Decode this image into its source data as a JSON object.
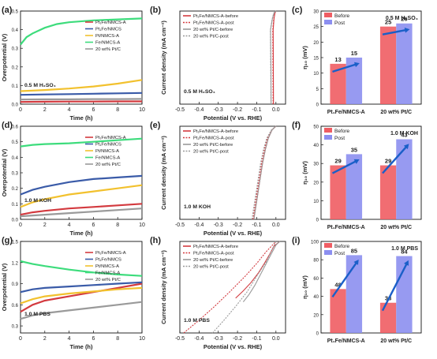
{
  "panel_labels": [
    "(a)",
    "(b)",
    "(c)",
    "(d)",
    "(e)",
    "(f)",
    "(g)",
    "(h)",
    "(i)"
  ],
  "colors": {
    "ptfe_nmcsa": "#d33a3f",
    "ptfe_nmcs": "#3a5ba8",
    "pt_nmcsa": "#f2c12e",
    "fe_nmcsa": "#3ddc7c",
    "ptc": "#9a9a9a",
    "before_bar": "#ef5d63",
    "post_bar": "#8c8ff0",
    "arrow": "#1a5fc8"
  },
  "chart_data": [
    {
      "id": "a",
      "type": "line",
      "xlabel": "Time (h)",
      "ylabel": "Overpotential (V)",
      "xlim": [
        0,
        10
      ],
      "ylim": [
        0,
        0.5
      ],
      "xticks": [
        "0",
        "2",
        "4",
        "6",
        "8",
        "10"
      ],
      "yticks": [
        "0.0",
        "0.1",
        "0.2",
        "0.3",
        "0.4",
        "0.5"
      ],
      "annotation": "0.5 M H₂SO₄",
      "legend": [
        "Pt₁Fe/NMCS-A",
        "Pt₁Fe/NMCS",
        "Pt/NMCS-A",
        "Fe/NMCS-A",
        "20 wt% Pt/C"
      ],
      "series": [
        {
          "name": "Pt₁Fe/NMCS-A",
          "color": "ptfe_nmcsa",
          "x": [
            0,
            2,
            4,
            6,
            8,
            10
          ],
          "y": [
            0.012,
            0.013,
            0.014,
            0.014,
            0.015,
            0.015
          ]
        },
        {
          "name": "Pt₁Fe/NMCS",
          "color": "ptfe_nmcs",
          "x": [
            0,
            2,
            4,
            6,
            8,
            10
          ],
          "y": [
            0.05,
            0.052,
            0.054,
            0.056,
            0.058,
            0.06
          ]
        },
        {
          "name": "Pt/NMCS-A",
          "color": "pt_nmcsa",
          "x": [
            0,
            2,
            4,
            6,
            8,
            10
          ],
          "y": [
            0.07,
            0.076,
            0.084,
            0.095,
            0.11,
            0.13
          ]
        },
        {
          "name": "Fe/NMCS-A",
          "color": "fe_nmcsa",
          "x": [
            0,
            0.5,
            1,
            2,
            3,
            4,
            6,
            8,
            10
          ],
          "y": [
            0.32,
            0.36,
            0.38,
            0.41,
            0.43,
            0.44,
            0.45,
            0.455,
            0.46
          ]
        },
        {
          "name": "20 wt% Pt/C",
          "color": "ptc",
          "x": [
            0,
            2,
            4,
            6,
            8,
            10
          ],
          "y": [
            0.025,
            0.026,
            0.026,
            0.027,
            0.027,
            0.028
          ]
        }
      ]
    },
    {
      "id": "b",
      "type": "line",
      "xlabel": "Potential (V vs. RHE)",
      "ylabel": "Current density (mA cm⁻²)",
      "xlim": [
        -0.5,
        0.05
      ],
      "ylim": [
        -10,
        0
      ],
      "xticks": [
        "-0.5",
        "-0.4",
        "-0.3",
        "-0.2",
        "-0.1",
        "0.0"
      ],
      "annotation": "0.5 M H₂SO₄",
      "legend": [
        "Pt₁Fe/NMCS-A-before",
        "Pt₁Fe/NMCS-A-post",
        "20 wt% Pt/C-before",
        "20 wt% Pt/C-post"
      ],
      "series": [
        {
          "name": "Pt₁Fe/NMCS-A-before",
          "color": "ptfe_nmcsa",
          "dash": false,
          "x": [
            -0.013,
            -0.0132,
            -0.0135,
            -0.014,
            -0.0145,
            -0.01,
            -0.005,
            0.0
          ],
          "y": [
            -10,
            -8,
            -6,
            -4,
            -2,
            -0.8,
            -0.2,
            0
          ]
        },
        {
          "name": "Pt₁Fe/NMCS-A-post",
          "color": "ptfe_nmcsa",
          "dash": true,
          "x": [
            -0.015,
            -0.0152,
            -0.0155,
            -0.016,
            -0.0165,
            -0.011,
            -0.006,
            0.0
          ],
          "y": [
            -10,
            -8,
            -6,
            -4,
            -2,
            -0.8,
            -0.2,
            0
          ]
        },
        {
          "name": "20 wt% Pt/C-before",
          "color": "ptc",
          "dash": false,
          "x": [
            -0.025,
            -0.0255,
            -0.026,
            -0.027,
            -0.028,
            -0.018,
            -0.01,
            0.0
          ],
          "y": [
            -10,
            -8,
            -6,
            -4,
            -2,
            -0.8,
            -0.2,
            0
          ]
        },
        {
          "name": "20 wt% Pt/C-post",
          "color": "ptc",
          "dash": true,
          "x": [
            -0.026,
            -0.0265,
            -0.027,
            -0.028,
            -0.029,
            -0.019,
            -0.011,
            0.0
          ],
          "y": [
            -10,
            -8,
            -6,
            -4,
            -2,
            -0.8,
            -0.2,
            0
          ]
        }
      ]
    },
    {
      "id": "c",
      "type": "bar",
      "ylabel": "η₁₀ (mV)",
      "ylim": [
        0,
        30
      ],
      "yticks": [
        "0",
        "5",
        "10",
        "15",
        "20",
        "25",
        "30"
      ],
      "annotation": "0.5 M H₂SO₄",
      "legend": [
        "Before",
        "Post"
      ],
      "categories": [
        "Pt₁Fe/NMCS-A",
        "20 wt% Pt/C"
      ],
      "series": [
        {
          "name": "Before",
          "color": "before_bar",
          "values": [
            13,
            25
          ]
        },
        {
          "name": "Post",
          "color": "post_bar",
          "values": [
            15,
            26
          ]
        }
      ]
    },
    {
      "id": "d",
      "type": "line",
      "xlabel": "Time (h)",
      "ylabel": "Overpotential (V)",
      "xlim": [
        0,
        10
      ],
      "ylim": [
        0,
        0.6
      ],
      "xticks": [
        "0",
        "2",
        "4",
        "6",
        "8",
        "10"
      ],
      "yticks": [
        "0.0",
        "0.1",
        "0.2",
        "0.3",
        "0.4",
        "0.5",
        "0.6"
      ],
      "annotation": "1.0 M KOH",
      "legend": [
        "Pt₁Fe/NMCS-A",
        "Pt₁Fe/NMCS",
        "Pt/NMCS-A",
        "Fe/NMCS-A",
        "20 wt% Pt/C"
      ],
      "series": [
        {
          "name": "Pt₁Fe/NMCS-A",
          "color": "ptfe_nmcsa",
          "x": [
            0,
            1,
            2,
            4,
            6,
            8,
            10
          ],
          "y": [
            0.03,
            0.045,
            0.055,
            0.07,
            0.08,
            0.09,
            0.1
          ]
        },
        {
          "name": "Pt₁Fe/NMCS",
          "color": "ptfe_nmcs",
          "x": [
            0,
            1,
            2,
            4,
            6,
            8,
            10
          ],
          "y": [
            0.16,
            0.19,
            0.21,
            0.24,
            0.26,
            0.27,
            0.28
          ]
        },
        {
          "name": "Pt/NMCS-A",
          "color": "pt_nmcsa",
          "x": [
            0,
            1,
            2,
            4,
            6,
            8,
            10
          ],
          "y": [
            0.08,
            0.11,
            0.13,
            0.16,
            0.18,
            0.2,
            0.22
          ]
        },
        {
          "name": "Fe/NMCS-A",
          "color": "fe_nmcsa",
          "x": [
            0,
            1,
            2,
            4,
            6,
            8,
            10
          ],
          "y": [
            0.47,
            0.48,
            0.485,
            0.49,
            0.5,
            0.51,
            0.52
          ]
        },
        {
          "name": "20 wt% Pt/C",
          "color": "ptc",
          "x": [
            0,
            2,
            4,
            6,
            8,
            10
          ],
          "y": [
            0.02,
            0.03,
            0.04,
            0.05,
            0.06,
            0.07
          ]
        }
      ]
    },
    {
      "id": "e",
      "type": "line",
      "xlabel": "Potential (V vs. RHE)",
      "ylabel": "Current density (mA cm⁻²)",
      "xlim": [
        -0.5,
        0.05
      ],
      "ylim": [
        -10,
        0
      ],
      "xticks": [
        "-0.5",
        "-0.4",
        "-0.3",
        "-0.2",
        "-0.1",
        "0.0"
      ],
      "annotation": "1.0 M KOH",
      "legend": [
        "Pt₁Fe/NMCS-A-before",
        "Pt₁Fe/NMCS-A-post",
        "20 wt% Pt/C-before",
        "20 wt% Pt/C-post"
      ],
      "series": [
        {
          "name": "Pt₁Fe/NMCS-A-before",
          "color": "ptfe_nmcsa",
          "dash": false,
          "x": [
            -0.115,
            -0.1,
            -0.085,
            -0.07,
            -0.055,
            -0.04,
            -0.02,
            0.0
          ],
          "y": [
            -10,
            -8,
            -6,
            -4,
            -2.5,
            -1.3,
            -0.4,
            0
          ]
        },
        {
          "name": "Pt₁Fe/NMCS-A-post",
          "color": "ptfe_nmcsa",
          "dash": true,
          "x": [
            -0.12,
            -0.105,
            -0.09,
            -0.075,
            -0.06,
            -0.045,
            -0.022,
            0.0
          ],
          "y": [
            -10,
            -8,
            -6,
            -4,
            -2.5,
            -1.3,
            -0.4,
            0
          ]
        },
        {
          "name": "20 wt% Pt/C-before",
          "color": "ptc",
          "dash": false,
          "x": [
            -0.115,
            -0.1,
            -0.085,
            -0.07,
            -0.055,
            -0.04,
            -0.02,
            0.0
          ],
          "y": [
            -10,
            -8,
            -6,
            -4,
            -2.5,
            -1.3,
            -0.4,
            0
          ]
        },
        {
          "name": "20 wt% Pt/C-post",
          "color": "ptc",
          "dash": true,
          "x": [
            -0.125,
            -0.11,
            -0.095,
            -0.08,
            -0.065,
            -0.048,
            -0.024,
            0.0
          ],
          "y": [
            -10,
            -8,
            -6,
            -4,
            -2.5,
            -1.3,
            -0.4,
            0
          ]
        }
      ]
    },
    {
      "id": "f",
      "type": "bar",
      "ylabel": "η₁₀ (mV)",
      "ylim": [
        0,
        50
      ],
      "yticks": [
        "0",
        "10",
        "20",
        "30",
        "40",
        "50"
      ],
      "annotation": "1.0 M KOH",
      "legend": [
        "Before",
        "Post"
      ],
      "categories": [
        "Pt₁Fe/NMCS-A",
        "20 wt% Pt/C"
      ],
      "series": [
        {
          "name": "Before",
          "color": "before_bar",
          "values": [
            29,
            29
          ]
        },
        {
          "name": "Post",
          "color": "post_bar",
          "values": [
            35,
            43
          ]
        }
      ]
    },
    {
      "id": "g",
      "type": "line",
      "xlabel": "Time (h)",
      "ylabel": "Overpotential (V)",
      "xlim": [
        0,
        10
      ],
      "ylim": [
        0.2,
        1.5
      ],
      "xticks": [
        "0",
        "2",
        "4",
        "6",
        "8",
        "10"
      ],
      "yticks": [
        "0.3",
        "0.6",
        "0.9",
        "1.2",
        "1.5"
      ],
      "annotation": "1.0 M PBS",
      "legend": [
        "Pt₁Fe/NMCS-A",
        "Pt₁Fe/NMCS",
        "Pt/NMCS-A",
        "Fe/NMCS-A",
        "20 wt% Pt/C"
      ],
      "series": [
        {
          "name": "Pt₁Fe/NMCS-A",
          "color": "ptfe_nmcsa",
          "x": [
            0,
            1,
            2,
            4,
            6,
            8,
            10
          ],
          "y": [
            0.5,
            0.6,
            0.66,
            0.72,
            0.78,
            0.84,
            0.9
          ]
        },
        {
          "name": "Pt₁Fe/NMCS",
          "color": "ptfe_nmcs",
          "x": [
            0,
            1,
            2,
            4,
            6,
            8,
            10
          ],
          "y": [
            0.78,
            0.82,
            0.84,
            0.86,
            0.88,
            0.9,
            0.92
          ]
        },
        {
          "name": "Pt/NMCS-A",
          "color": "pt_nmcsa",
          "x": [
            0,
            1,
            2,
            4,
            6,
            8,
            10
          ],
          "y": [
            0.62,
            0.68,
            0.72,
            0.76,
            0.79,
            0.82,
            0.84
          ]
        },
        {
          "name": "Fe/NMCS-A",
          "color": "fe_nmcsa",
          "x": [
            0,
            0.5,
            1,
            2,
            4,
            6,
            8,
            10
          ],
          "y": [
            1.22,
            1.2,
            1.18,
            1.15,
            1.1,
            1.06,
            1.03,
            1.01
          ]
        },
        {
          "name": "20 wt% Pt/C",
          "color": "ptc",
          "x": [
            0,
            1,
            2,
            4,
            6,
            8,
            10
          ],
          "y": [
            0.4,
            0.45,
            0.48,
            0.52,
            0.56,
            0.6,
            0.64
          ]
        }
      ]
    },
    {
      "id": "h",
      "type": "line",
      "xlabel": "Potential (V vs. RHE)",
      "ylabel": "Current density (mA cm⁻²)",
      "xlim": [
        -0.5,
        0.05
      ],
      "ylim": [
        -10,
        0
      ],
      "xticks": [
        "-0.5",
        "-0.4",
        "-0.3",
        "-0.2",
        "-0.1",
        "0.0"
      ],
      "annotation": "1.0 M PBS",
      "legend": [
        "Pt₁Fe/NMCS-A-before",
        "Pt₁Fe/NMCS-A-post",
        "20 wt% Pt/C-before",
        "20 wt% Pt/C-post"
      ],
      "series": [
        {
          "name": "Pt₁Fe/NMCS-A-before",
          "color": "ptfe_nmcsa",
          "dash": false,
          "x": [
            -0.21,
            -0.17,
            -0.13,
            -0.09,
            -0.06,
            -0.03,
            -0.01,
            0.02
          ],
          "y": [
            -6.2,
            -5.4,
            -4.5,
            -3.4,
            -2.4,
            -1.3,
            -0.5,
            0
          ]
        },
        {
          "name": "Pt₁Fe/NMCS-A-post",
          "color": "ptfe_nmcsa",
          "dash": true,
          "x": [
            -0.48,
            -0.4,
            -0.32,
            -0.24,
            -0.16,
            -0.1,
            -0.05,
            0.0
          ],
          "y": [
            -10,
            -8.6,
            -7.1,
            -5.5,
            -3.8,
            -2.4,
            -1.1,
            0
          ]
        },
        {
          "name": "20 wt% Pt/C-before",
          "color": "ptc",
          "dash": false,
          "x": [
            -0.17,
            -0.14,
            -0.11,
            -0.08,
            -0.05,
            -0.02,
            0.0,
            0.02
          ],
          "y": [
            -6.6,
            -5.8,
            -4.8,
            -3.6,
            -2.4,
            -1.2,
            -0.4,
            0
          ]
        },
        {
          "name": "20 wt% Pt/C-post",
          "color": "ptc",
          "dash": true,
          "x": [
            -0.33,
            -0.27,
            -0.21,
            -0.15,
            -0.1,
            -0.05,
            -0.02,
            0.0
          ],
          "y": [
            -10,
            -8.6,
            -7.1,
            -5.5,
            -3.8,
            -2.2,
            -0.9,
            0
          ]
        }
      ]
    },
    {
      "id": "i",
      "type": "bar",
      "ylabel": "η₁₀ (mV)",
      "ylim": [
        0,
        100
      ],
      "yticks": [
        "0",
        "20",
        "40",
        "60",
        "80",
        "100"
      ],
      "annotation": "1.0 M PBS",
      "legend": [
        "Before",
        "Post"
      ],
      "categories": [
        "Pt₁Fe/NMCS-A",
        "20 wt% Pt/C"
      ],
      "series": [
        {
          "name": "Before",
          "color": "before_bar",
          "values": [
            48,
            33
          ]
        },
        {
          "name": "Post",
          "color": "post_bar",
          "values": [
            85,
            84
          ]
        }
      ]
    }
  ]
}
